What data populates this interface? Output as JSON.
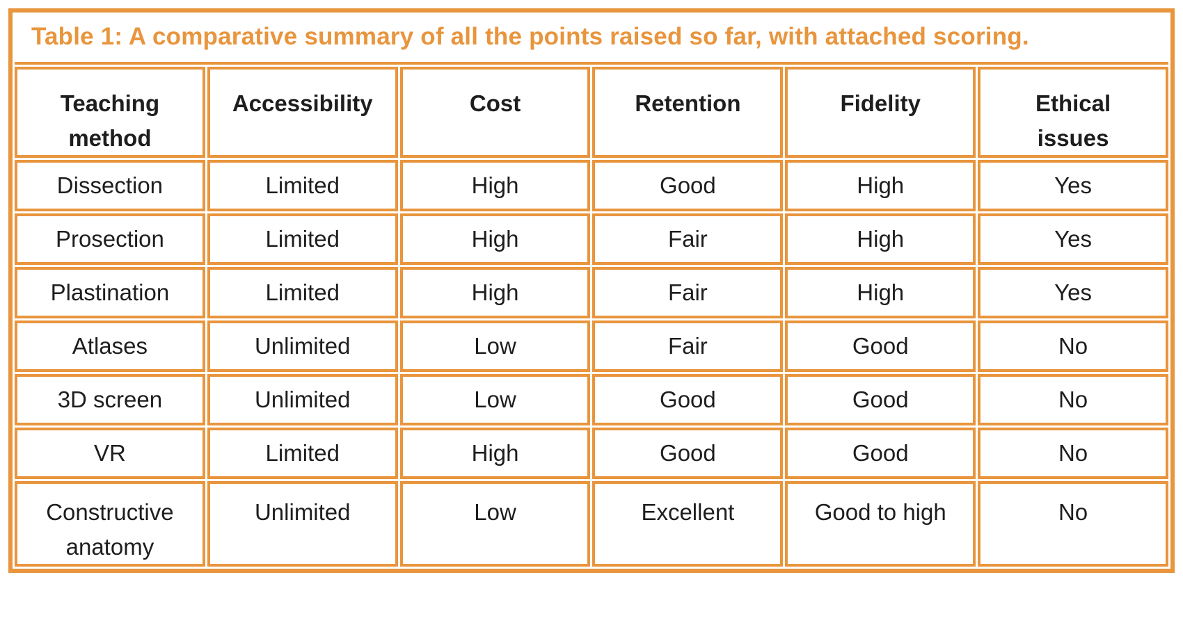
{
  "colors": {
    "accent": "#E8953D",
    "title_text": "#E8953D",
    "body_text": "#1E1E1E",
    "background": "#FFFFFF"
  },
  "title": "Table 1: A comparative summary of all the points raised so far, with attached scoring.",
  "table": {
    "headers": [
      "Teaching\nmethod",
      "Accessibility",
      "Cost",
      "Retention",
      "Fidelity",
      "Ethical\nissues"
    ],
    "rows": [
      [
        "Dissection",
        "Limited",
        "High",
        "Good",
        "High",
        "Yes"
      ],
      [
        "Prosection",
        "Limited",
        "High",
        "Fair",
        "High",
        "Yes"
      ],
      [
        "Plastination",
        "Limited",
        "High",
        "Fair",
        "High",
        "Yes"
      ],
      [
        "Atlases",
        "Unlimited",
        "Low",
        "Fair",
        "Good",
        "No"
      ],
      [
        "3D screen",
        "Unlimited",
        "Low",
        "Good",
        "Good",
        "No"
      ],
      [
        "VR",
        "Limited",
        "High",
        "Good",
        "Good",
        "No"
      ],
      [
        "Constructive\nanatomy",
        "Unlimited",
        "Low",
        "Excellent",
        "Good to high",
        "No"
      ]
    ],
    "tall_row_index": 6
  },
  "chart_data": {
    "type": "table",
    "title": "Table 1: A comparative summary of all the points raised so far, with attached scoring.",
    "columns": [
      "Teaching method",
      "Accessibility",
      "Cost",
      "Retention",
      "Fidelity",
      "Ethical issues"
    ],
    "rows": [
      [
        "Dissection",
        "Limited",
        "High",
        "Good",
        "High",
        "Yes"
      ],
      [
        "Prosection",
        "Limited",
        "High",
        "Fair",
        "High",
        "Yes"
      ],
      [
        "Plastination",
        "Limited",
        "High",
        "Fair",
        "High",
        "Yes"
      ],
      [
        "Atlases",
        "Unlimited",
        "Low",
        "Fair",
        "Good",
        "No"
      ],
      [
        "3D screen",
        "Unlimited",
        "Low",
        "Good",
        "Good",
        "No"
      ],
      [
        "VR",
        "Limited",
        "High",
        "Good",
        "Good",
        "No"
      ],
      [
        "Constructive anatomy",
        "Unlimited",
        "Low",
        "Excellent",
        "Good to high",
        "No"
      ]
    ]
  }
}
